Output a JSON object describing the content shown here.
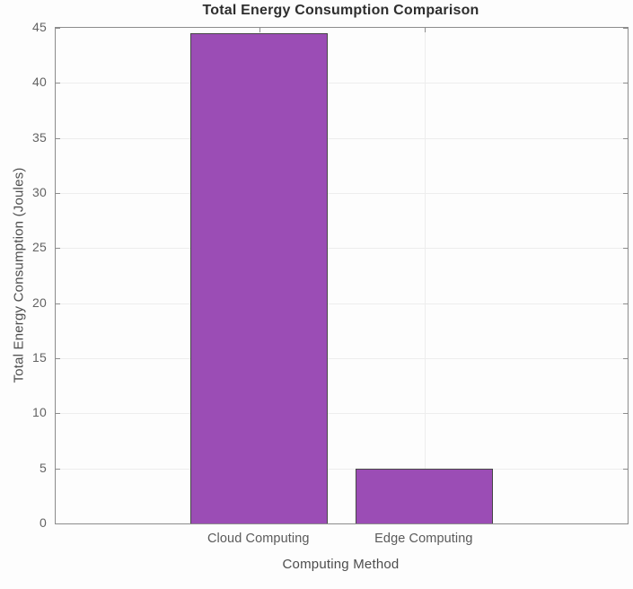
{
  "chart_data": {
    "type": "bar",
    "title": "Total Energy Consumption Comparison",
    "categories": [
      "Cloud Computing",
      "Edge Computing"
    ],
    "values": [
      44.5,
      5
    ],
    "xlabel": "Computing Method",
    "ylabel": "Total Energy Consumption (Joules)",
    "ylim": [
      0,
      45
    ],
    "yticks": [
      0,
      5,
      10,
      15,
      20,
      25,
      30,
      35,
      40,
      45
    ],
    "grid": "on",
    "legend_position": "none",
    "bar_color": "#9b4db5",
    "bar_edge_color": "#474747",
    "axes_box_color": "#8c8c8c",
    "gridline_color": "#ededed",
    "tick_label_color": "#636363",
    "title_color": "#2e2e2e"
  }
}
